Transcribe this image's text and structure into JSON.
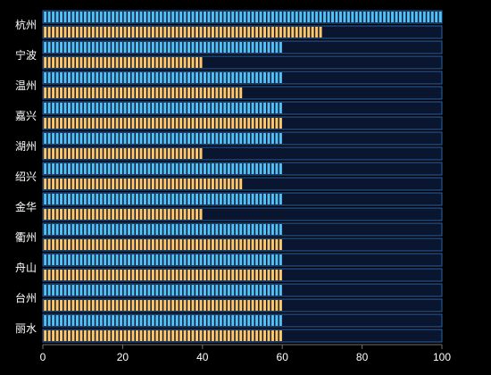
{
  "chart_data": {
    "type": "bar",
    "orientation": "horizontal",
    "categories": [
      "杭州",
      "宁波",
      "温州",
      "嘉兴",
      "湖州",
      "绍兴",
      "金华",
      "衢州",
      "舟山",
      "台州",
      "丽水"
    ],
    "series": [
      {
        "values": [
          100,
          60,
          60,
          60,
          60,
          60,
          60,
          60,
          60,
          60,
          60
        ],
        "color": "#4fc3f7"
      },
      {
        "values": [
          70,
          40,
          50,
          60,
          40,
          50,
          40,
          60,
          60,
          60,
          60
        ],
        "color": "#ffc766"
      }
    ],
    "xlim": [
      0,
      100
    ],
    "x_ticks": [
      "0",
      "20",
      "40",
      "60",
      "80",
      "100"
    ],
    "grid": false,
    "background_track": true,
    "colors": {
      "track_fill": "#0a1530",
      "track_border": "#2a64a8",
      "background": "#000000"
    }
  }
}
